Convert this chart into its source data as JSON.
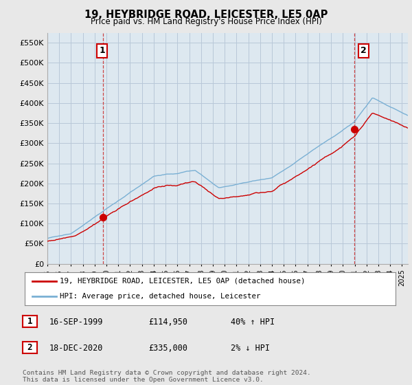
{
  "title": "19, HEYBRIDGE ROAD, LEICESTER, LE5 0AP",
  "subtitle": "Price paid vs. HM Land Registry's House Price Index (HPI)",
  "ytick_values": [
    0,
    50000,
    100000,
    150000,
    200000,
    250000,
    300000,
    350000,
    400000,
    450000,
    500000,
    550000
  ],
  "ylim": [
    0,
    575000
  ],
  "background_color": "#e8e8e8",
  "plot_background": "#dde8f0",
  "grid_color": "#b8c8d8",
  "hpi_line_color": "#7ab0d4",
  "price_line_color": "#cc0000",
  "sale1_date_num": 1999.72,
  "sale1_price": 114950,
  "sale2_date_num": 2020.96,
  "sale2_price": 335000,
  "legend_label1": "19, HEYBRIDGE ROAD, LEICESTER, LE5 0AP (detached house)",
  "legend_label2": "HPI: Average price, detached house, Leicester",
  "annotation1_label": "1",
  "annotation2_label": "2",
  "table_row1": [
    "1",
    "16-SEP-1999",
    "£114,950",
    "40% ↑ HPI"
  ],
  "table_row2": [
    "2",
    "18-DEC-2020",
    "£335,000",
    "2% ↓ HPI"
  ],
  "footer": "Contains HM Land Registry data © Crown copyright and database right 2024.\nThis data is licensed under the Open Government Licence v3.0.",
  "xmin": 1995,
  "xmax": 2025.5
}
